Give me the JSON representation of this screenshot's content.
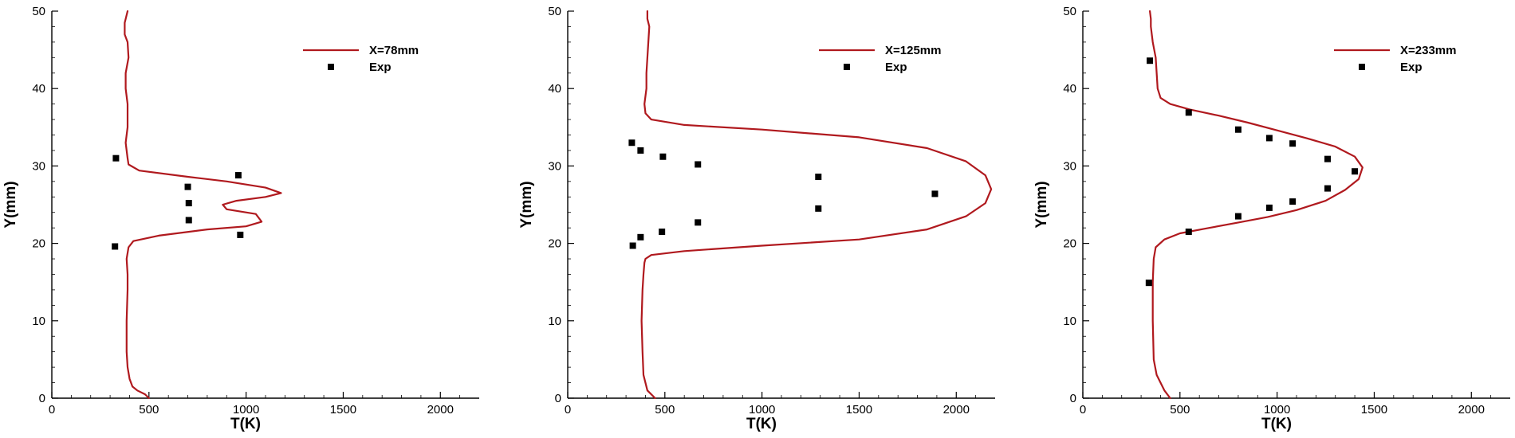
{
  "colors": {
    "curve": "#b0191e",
    "marker": "#000000"
  },
  "chart_data": [
    {
      "type": "line",
      "xlabel": "T(K)",
      "ylabel": "Y(mm)",
      "xlim": [
        0,
        2200
      ],
      "ylim": [
        0,
        50
      ],
      "xticks": [
        0,
        500,
        1000,
        1500,
        2000
      ],
      "yticks": [
        0,
        10,
        20,
        30,
        40,
        50
      ],
      "series": [
        {
          "name": "X=78mm",
          "style": "line",
          "x": [
            500,
            480,
            440,
            415,
            400,
            390,
            385,
            385,
            390,
            390,
            385,
            395,
            420,
            550,
            800,
            1000,
            1080,
            1050,
            900,
            880,
            950,
            1100,
            1180,
            1100,
            900,
            700,
            450,
            395,
            390,
            380,
            390,
            390,
            380,
            380,
            395,
            390,
            375,
            375,
            390
          ],
          "y": [
            0,
            0.5,
            1.0,
            1.5,
            2.5,
            4,
            6,
            10,
            14,
            16,
            18,
            19.5,
            20.3,
            21.0,
            21.8,
            22.2,
            22.8,
            23.8,
            24.4,
            25.0,
            25.5,
            26.0,
            26.5,
            27.2,
            28.0,
            28.6,
            29.4,
            30.2,
            31,
            33,
            35,
            38,
            40,
            42,
            44,
            46,
            47,
            48.5,
            50
          ]
        },
        {
          "name": "Exp",
          "style": "markers",
          "x": [
            330,
            700,
            705,
            705,
            960,
            970,
            325
          ],
          "y": [
            31.0,
            27.3,
            25.2,
            23.0,
            28.8,
            21.1,
            19.6
          ]
        }
      ]
    },
    {
      "type": "line",
      "xlabel": "T(K)",
      "ylabel": "Y(mm)",
      "xlim": [
        0,
        2200
      ],
      "ylim": [
        0,
        50
      ],
      "xticks": [
        0,
        500,
        1000,
        1500,
        2000
      ],
      "yticks": [
        0,
        10,
        20,
        30,
        40,
        50
      ],
      "series": [
        {
          "name": "X=125mm",
          "style": "line",
          "x": [
            450,
            410,
            390,
            385,
            380,
            385,
            390,
            395,
            400,
            430,
            600,
            1000,
            1500,
            1850,
            2050,
            2150,
            2180,
            2150,
            2050,
            1850,
            1500,
            1000,
            600,
            430,
            400,
            395,
            405,
            405,
            410,
            415,
            420,
            410,
            410
          ],
          "y": [
            0,
            1,
            3,
            6,
            10,
            14,
            16,
            17.5,
            18.0,
            18.5,
            19.0,
            19.7,
            20.5,
            21.8,
            23.5,
            25.2,
            27.0,
            28.8,
            30.6,
            32.3,
            33.7,
            34.7,
            35.3,
            36.0,
            36.8,
            38,
            40,
            42,
            44,
            46,
            48,
            49,
            50
          ]
        },
        {
          "name": "Exp",
          "style": "markers",
          "x": [
            330,
            375,
            490,
            670,
            1290,
            1890,
            1290,
            670,
            485,
            375,
            335
          ],
          "y": [
            33.0,
            32.0,
            31.2,
            30.2,
            28.6,
            26.4,
            24.5,
            22.7,
            21.5,
            20.8,
            19.7
          ]
        }
      ]
    },
    {
      "type": "line",
      "xlabel": "T(K)",
      "ylabel": "Y(mm)",
      "xlim": [
        0,
        2200
      ],
      "ylim": [
        0,
        50
      ],
      "xticks": [
        0,
        500,
        1000,
        1500,
        2000
      ],
      "yticks": [
        0,
        10,
        20,
        30,
        40,
        50
      ],
      "series": [
        {
          "name": "X=233mm",
          "style": "line",
          "x": [
            450,
            420,
            380,
            365,
            360,
            360,
            365,
            375,
            420,
            500,
            650,
            800,
            950,
            1100,
            1250,
            1350,
            1420,
            1440,
            1400,
            1300,
            1150,
            1000,
            850,
            700,
            550,
            450,
            400,
            385,
            380,
            375,
            360,
            350,
            350,
            345
          ],
          "y": [
            0,
            1,
            3,
            5,
            10,
            15,
            18,
            19.5,
            20.5,
            21.3,
            22.0,
            22.7,
            23.4,
            24.3,
            25.5,
            26.9,
            28.3,
            29.8,
            31.2,
            32.5,
            33.6,
            34.6,
            35.6,
            36.5,
            37.3,
            38.0,
            38.8,
            40,
            42,
            44,
            46,
            48,
            49,
            50
          ]
        },
        {
          "name": "Exp",
          "style": "markers",
          "x": [
            345,
            545,
            800,
            960,
            1080,
            1260,
            1400,
            1260,
            1080,
            960,
            800,
            545,
            340
          ],
          "y": [
            43.6,
            36.9,
            34.7,
            33.6,
            32.9,
            30.9,
            29.3,
            27.1,
            25.4,
            24.6,
            23.5,
            21.5,
            14.9
          ]
        }
      ]
    }
  ]
}
